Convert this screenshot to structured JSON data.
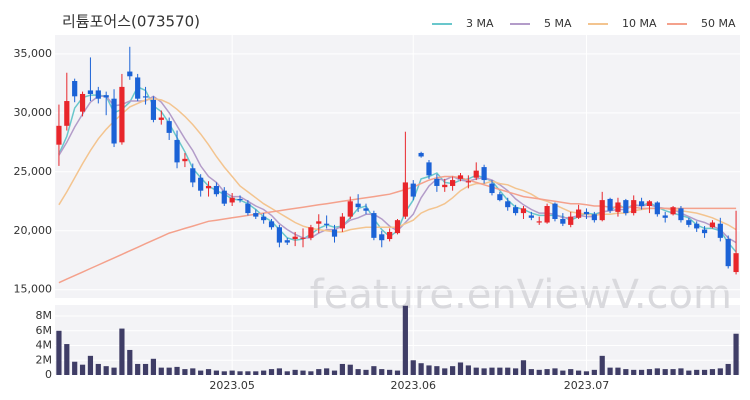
{
  "chart_data": {
    "type": "candlestick",
    "title": "리튬포어스(073570)",
    "watermark": "feature.enViewV.com",
    "categories": [
      null,
      null,
      null,
      null,
      null,
      null,
      null,
      null,
      null,
      null,
      null,
      null,
      null,
      null,
      null,
      null,
      null,
      null,
      null,
      null,
      null,
      null,
      "2023.05",
      null,
      null,
      null,
      null,
      null,
      null,
      null,
      null,
      null,
      null,
      null,
      null,
      null,
      null,
      null,
      null,
      null,
      null,
      null,
      null,
      null,
      null,
      "2023.06",
      null,
      null,
      null,
      null,
      null,
      null,
      null,
      null,
      null,
      null,
      null,
      null,
      null,
      null,
      null,
      null,
      null,
      null,
      null,
      null,
      null,
      "2023.07",
      null,
      null,
      null,
      null,
      null,
      null,
      null,
      null,
      null,
      null,
      null,
      null,
      null,
      null,
      null,
      null,
      null,
      null,
      null
    ],
    "open": [
      27300,
      28900,
      32700,
      30100,
      31900,
      31900,
      31500,
      31200,
      27500,
      33500,
      33000,
      31400,
      31100,
      29400,
      29300,
      27700,
      25900,
      25300,
      24500,
      23600,
      23800,
      23400,
      22400,
      22700,
      22300,
      21500,
      21200,
      20800,
      20300,
      19200,
      19300,
      19400,
      19400,
      20600,
      20600,
      20100,
      20200,
      21200,
      22300,
      21900,
      21500,
      19700,
      19300,
      19800,
      21200,
      24000,
      26600,
      25800,
      24400,
      23700,
      23800,
      24400,
      24100,
      24500,
      25400,
      24000,
      23100,
      22500,
      22000,
      21500,
      21300,
      20700,
      20700,
      22300,
      21000,
      20500,
      21100,
      21600,
      21400,
      20900,
      22700,
      21600,
      22600,
      21500,
      22500,
      22100,
      22400,
      21300,
      21400,
      21900,
      20900,
      20600,
      20100,
      20300,
      20600,
      19300,
      16500
    ],
    "high": [
      30700,
      33400,
      32900,
      31800,
      34700,
      32200,
      31800,
      32000,
      33300,
      35600,
      33300,
      32200,
      31400,
      30200,
      29600,
      28500,
      26600,
      25700,
      24800,
      24200,
      24100,
      23700,
      23200,
      23000,
      22600,
      21800,
      21500,
      21000,
      20500,
      19400,
      19900,
      20200,
      20500,
      21400,
      21300,
      20500,
      21500,
      22900,
      23100,
      22300,
      21700,
      20000,
      20200,
      21000,
      28400,
      24300,
      26700,
      26000,
      24800,
      24400,
      24600,
      24900,
      24700,
      25800,
      25600,
      24300,
      23300,
      22800,
      22200,
      22100,
      21600,
      21200,
      22300,
      22400,
      21500,
      21600,
      22200,
      21900,
      21600,
      23300,
      22800,
      22800,
      22700,
      23000,
      22800,
      22600,
      22500,
      21600,
      22100,
      22100,
      21100,
      20800,
      20400,
      20900,
      21100,
      19600,
      21700
    ],
    "low": [
      25500,
      28500,
      30900,
      29700,
      31000,
      30800,
      29800,
      27100,
      27300,
      32800,
      31000,
      30700,
      29200,
      29000,
      27700,
      25300,
      25400,
      23700,
      22900,
      22900,
      22900,
      22100,
      22100,
      22400,
      21300,
      21000,
      20600,
      20100,
      18600,
      18800,
      18700,
      18600,
      19200,
      19800,
      20200,
      19000,
      19900,
      21000,
      21600,
      21400,
      19200,
      18600,
      19100,
      19700,
      21000,
      22600,
      26200,
      24400,
      23300,
      23300,
      23400,
      24200,
      23600,
      24300,
      24000,
      23000,
      22500,
      21700,
      21300,
      21000,
      20900,
      20500,
      20600,
      20800,
      20400,
      20300,
      21000,
      21000,
      20700,
      20800,
      21500,
      21200,
      21300,
      21300,
      21800,
      21500,
      21200,
      20700,
      21300,
      20700,
      20300,
      19900,
      19400,
      20200,
      19100,
      16800,
      16300
    ],
    "close": [
      28900,
      31000,
      31400,
      31600,
      31600,
      31200,
      31300,
      27400,
      32200,
      33100,
      31200,
      31300,
      29400,
      29600,
      28300,
      25800,
      26100,
      24100,
      23400,
      23800,
      23100,
      22300,
      22800,
      22600,
      21500,
      21200,
      20900,
      20300,
      19000,
      19000,
      19500,
      19400,
      20300,
      20800,
      20500,
      19500,
      21200,
      22500,
      22000,
      21700,
      19400,
      19200,
      19900,
      20900,
      24100,
      22900,
      26300,
      24700,
      23800,
      23900,
      24300,
      24700,
      24200,
      25100,
      24300,
      23200,
      22600,
      22000,
      21500,
      21900,
      21100,
      20800,
      22100,
      21000,
      20600,
      21200,
      21800,
      21400,
      20900,
      22600,
      21700,
      22400,
      21500,
      22600,
      22100,
      22500,
      21400,
      21100,
      22000,
      20900,
      20500,
      20200,
      19800,
      20700,
      19400,
      17000,
      18100
    ],
    "volume": [
      6000000,
      4200000,
      1800000,
      1400000,
      2600000,
      1500000,
      1200000,
      1000000,
      6300000,
      3400000,
      1500000,
      1500000,
      2200000,
      1000000,
      1000000,
      1100000,
      800000,
      900000,
      600000,
      800000,
      600000,
      500000,
      600000,
      500000,
      500000,
      500000,
      600000,
      800000,
      900000,
      500000,
      700000,
      600000,
      500000,
      800000,
      900000,
      600000,
      1500000,
      1400000,
      800000,
      700000,
      1200000,
      800000,
      700000,
      600000,
      9400000,
      2000000,
      1600000,
      1300000,
      1200000,
      900000,
      1200000,
      1700000,
      1300000,
      1000000,
      900000,
      1000000,
      1000000,
      1000000,
      900000,
      2000000,
      800000,
      700000,
      800000,
      900000,
      600000,
      800000,
      600000,
      500000,
      700000,
      2600000,
      1000000,
      1000000,
      800000,
      700000,
      700000,
      800000,
      900000,
      800000,
      800000,
      900000,
      600000,
      700000,
      700000,
      800000,
      900000,
      1500000,
      5600000
    ],
    "up_color": "#e8262b",
    "down_color": "#1b62d6",
    "volume_color": "#3f3d66",
    "series": [
      {
        "name": "3 MA",
        "color": "#69c7cc",
        "values": [
          26500,
          28000,
          30400,
          31300,
          31500,
          31500,
          31400,
          30000,
          30300,
          30900,
          32200,
          31900,
          30600,
          30100,
          29100,
          27900,
          26700,
          25300,
          24500,
          23800,
          23400,
          23100,
          22700,
          22600,
          22300,
          21800,
          21200,
          20800,
          20100,
          19400,
          19200,
          19300,
          19700,
          20200,
          20500,
          20300,
          20400,
          21100,
          21900,
          22100,
          21000,
          20100,
          19500,
          20000,
          21600,
          22600,
          24400,
          24600,
          24900,
          24100,
          24000,
          24300,
          24400,
          24700,
          24500,
          24200,
          23400,
          22600,
          22000,
          21800,
          21500,
          21300,
          21300,
          21300,
          21200,
          20900,
          21200,
          21500,
          21400,
          21600,
          21700,
          22200,
          21900,
          22200,
          22100,
          22400,
          22000,
          21700,
          21500,
          21300,
          21100,
          20500,
          20200,
          20200,
          20000,
          19000,
          18200
        ]
      },
      {
        "name": "5 MA",
        "color": "#b39cc9",
        "values": [
          26400,
          27500,
          28800,
          29900,
          30900,
          31400,
          31400,
          30600,
          30700,
          31000,
          31000,
          31000,
          31400,
          30900,
          30000,
          28900,
          27800,
          26800,
          25500,
          24600,
          24100,
          23300,
          22900,
          22900,
          22500,
          22100,
          21800,
          21300,
          20600,
          20100,
          19700,
          19400,
          19400,
          19800,
          20100,
          20100,
          20400,
          20900,
          21100,
          21400,
          21400,
          21000,
          20400,
          20000,
          20700,
          21400,
          22800,
          23800,
          24400,
          24300,
          24600,
          24300,
          24200,
          24400,
          24500,
          24300,
          23900,
          23400,
          22700,
          22200,
          21800,
          21500,
          21500,
          21400,
          21100,
          21100,
          21300,
          21200,
          21200,
          21600,
          21700,
          21800,
          21800,
          22200,
          22100,
          22200,
          22000,
          21900,
          21800,
          21500,
          21200,
          20900,
          20700,
          20400,
          20100,
          19400,
          19000
        ]
      },
      {
        "name": "10 MA",
        "color": "#f3c48f",
        "values": [
          22200,
          23300,
          24500,
          25700,
          26800,
          27800,
          28600,
          29300,
          29900,
          30500,
          30800,
          31100,
          31200,
          31100,
          30800,
          30300,
          29700,
          29000,
          28200,
          27300,
          26300,
          25400,
          24600,
          23800,
          23300,
          22800,
          22300,
          21900,
          21500,
          21100,
          20700,
          20400,
          20200,
          20100,
          20000,
          19900,
          19900,
          20100,
          20200,
          20300,
          20300,
          20300,
          20300,
          20300,
          20600,
          20900,
          21500,
          21800,
          22000,
          22300,
          22800,
          23400,
          23800,
          24000,
          24000,
          24200,
          24000,
          23900,
          23600,
          23400,
          23100,
          22700,
          22500,
          22200,
          21900,
          21600,
          21500,
          21400,
          21300,
          21400,
          21400,
          21500,
          21500,
          21700,
          21800,
          21900,
          21900,
          21900,
          21800,
          21700,
          21600,
          21500,
          21300,
          21100,
          20800,
          20500,
          20100
        ]
      },
      {
        "name": "50 MA",
        "color": "#f4a18c",
        "values": [
          15600,
          15900,
          16200,
          16500,
          16800,
          17100,
          17400,
          17700,
          18000,
          18300,
          18600,
          18900,
          19200,
          19500,
          19800,
          20000,
          20200,
          20400,
          20600,
          20800,
          20900,
          21000,
          21100,
          21200,
          21300,
          21400,
          21500,
          21600,
          21700,
          21800,
          21900,
          22000,
          22100,
          22200,
          22300,
          22400,
          22500,
          22600,
          22700,
          22800,
          22900,
          23000,
          23100,
          23300,
          23500,
          23700,
          24000,
          24300,
          24500,
          24600,
          24600,
          24500,
          24300,
          24100,
          23900,
          23700,
          23500,
          23300,
          23100,
          22900,
          22800,
          22700,
          22600,
          22500,
          22400,
          22300,
          22300,
          22200,
          22100,
          22100,
          22000,
          22000,
          22000,
          22000,
          21900,
          21900,
          21900,
          21900,
          21900,
          21900,
          21900,
          21900,
          21900,
          21900,
          21900,
          21900,
          21900
        ]
      }
    ],
    "ylim": [
      14300,
      36600
    ],
    "yticks": [
      {
        "value": 15000,
        "label": "15,000"
      },
      {
        "value": 20000,
        "label": "20,000"
      },
      {
        "value": 25000,
        "label": "25,000"
      },
      {
        "value": 30000,
        "label": "30,000"
      },
      {
        "value": 35000,
        "label": "35,000"
      }
    ],
    "volume_ylim": [
      0,
      9500000
    ],
    "volume_yticks": [
      0,
      {
        "value": 2000000,
        "label": "2M"
      },
      {
        "value": 4000000,
        "label": "4M"
      },
      {
        "value": 6000000,
        "label": "6M"
      },
      {
        "value": 8000000,
        "label": "8M"
      }
    ],
    "grid": true
  }
}
